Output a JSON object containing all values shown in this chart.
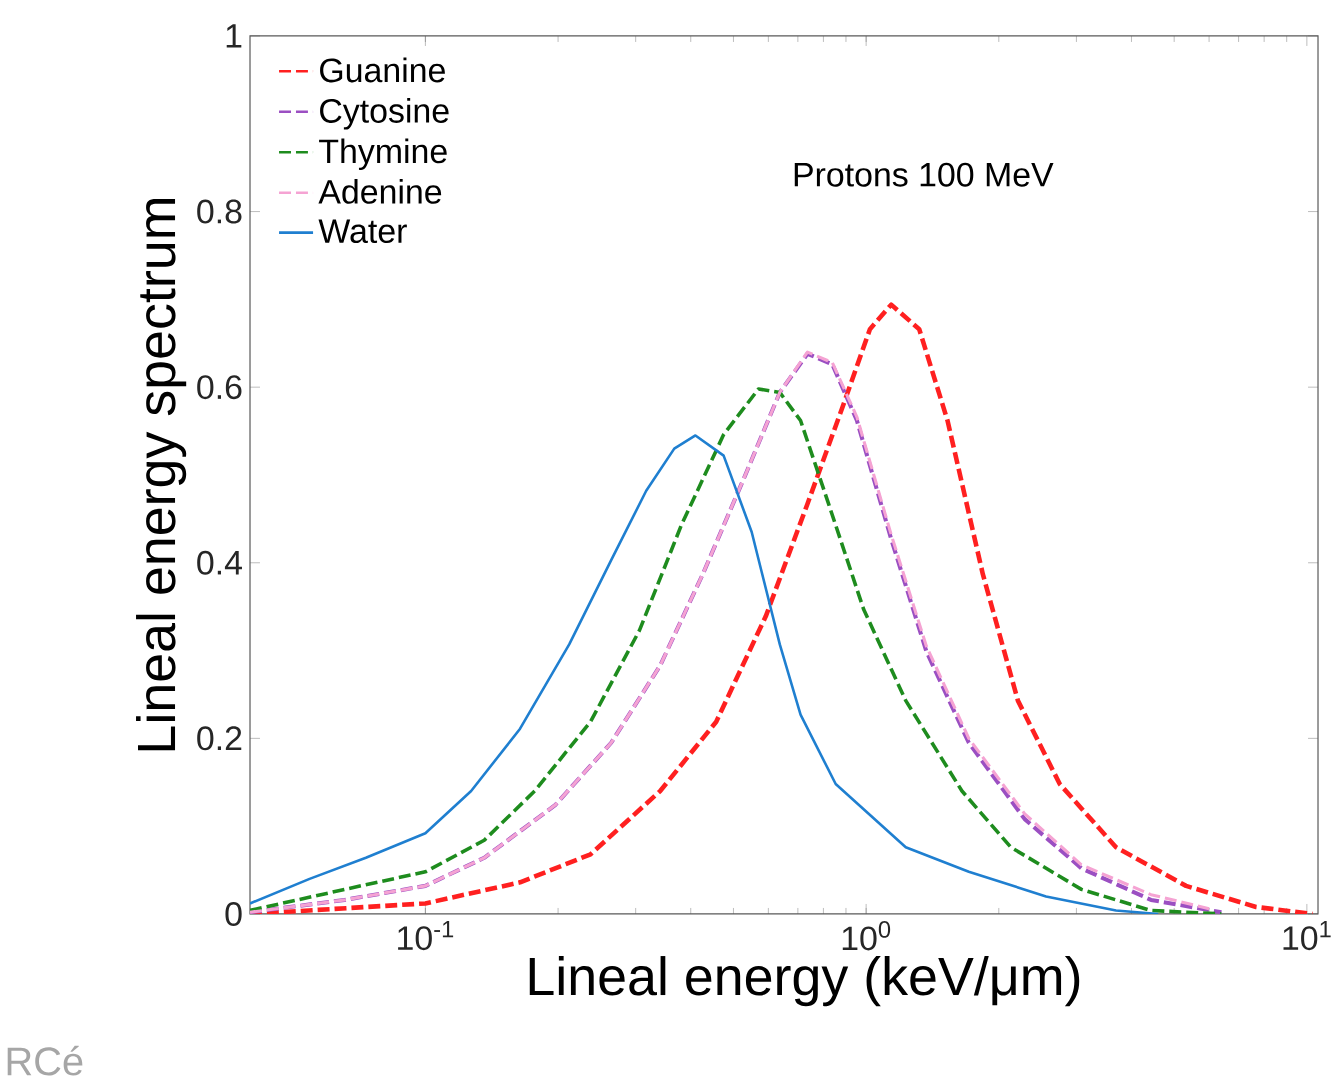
{
  "chart_data": {
    "type": "line",
    "xlabel": "Lineal energy (keV/μm)",
    "ylabel": "Lineal energy spectrum",
    "annotations": [
      "Protons 100 MeV",
      "RCé"
    ],
    "log": "x",
    "xlim": [
      0.04,
      10.6
    ],
    "ylim": [
      0,
      1
    ],
    "xticks": [
      {
        "value": 0.1,
        "label": "10$^{-1}$"
      },
      {
        "value": 1,
        "label": "10$^{0}$"
      },
      {
        "value": 10,
        "label": "10$^{1}$"
      }
    ],
    "yticks": [
      0,
      0.2,
      0.4,
      0.6,
      0.8,
      1
    ],
    "grid": false,
    "legend": "top left",
    "marker": "none",
    "series": [
      {
        "name": "Guanine",
        "color": "#ff2020",
        "line_style": "dashed",
        "x": [
          0.04,
          0.1,
          0.164,
          0.237,
          0.341,
          0.457,
          0.592,
          0.736,
          0.885,
          1.02,
          1.14,
          1.32,
          1.53,
          1.84,
          2.21,
          2.75,
          3.69,
          5.32,
          7.67,
          10.3
        ],
        "values": [
          0,
          0.012,
          0.036,
          0.068,
          0.14,
          0.219,
          0.339,
          0.467,
          0.578,
          0.666,
          0.694,
          0.666,
          0.562,
          0.387,
          0.243,
          0.148,
          0.076,
          0.032,
          0.008,
          0
        ]
      },
      {
        "name": "Cytosine",
        "color": "#9b4fc2",
        "line_style": "dashed",
        "x": [
          0.04,
          0.0656,
          0.1,
          0.136,
          0.197,
          0.264,
          0.341,
          0.426,
          0.53,
          0.637,
          0.736,
          0.838,
          0.953,
          1.14,
          1.37,
          1.71,
          2.29,
          3.08,
          4.43,
          6.4
        ],
        "values": [
          0.002,
          0.016,
          0.032,
          0.064,
          0.124,
          0.195,
          0.283,
          0.387,
          0.498,
          0.594,
          0.638,
          0.626,
          0.562,
          0.427,
          0.299,
          0.195,
          0.108,
          0.052,
          0.016,
          0.002
        ]
      },
      {
        "name": "Thymine",
        "color": "#1e8c1e",
        "line_style": "dashed",
        "x": [
          0.04,
          0.0656,
          0.1,
          0.136,
          0.177,
          0.237,
          0.306,
          0.381,
          0.475,
          0.57,
          0.637,
          0.71,
          0.822,
          0.987,
          1.23,
          1.65,
          2.13,
          3.08,
          4.43,
          6.4
        ],
        "values": [
          0.004,
          0.028,
          0.048,
          0.084,
          0.14,
          0.219,
          0.323,
          0.443,
          0.546,
          0.598,
          0.594,
          0.562,
          0.467,
          0.347,
          0.243,
          0.14,
          0.076,
          0.028,
          0.004,
          0
        ]
      },
      {
        "name": "Adenine",
        "color": "#f5a3d3",
        "line_style": "dashed",
        "x": [
          0.04,
          0.0656,
          0.1,
          0.136,
          0.197,
          0.264,
          0.341,
          0.426,
          0.53,
          0.637,
          0.736,
          0.838,
          0.953,
          1.14,
          1.37,
          1.71,
          2.29,
          3.08,
          4.43,
          6.0
        ],
        "values": [
          0.002,
          0.016,
          0.032,
          0.064,
          0.124,
          0.195,
          0.283,
          0.387,
          0.498,
          0.594,
          0.64,
          0.628,
          0.566,
          0.432,
          0.305,
          0.2,
          0.114,
          0.056,
          0.022,
          0.006
        ]
      },
      {
        "name": "Water",
        "color": "#1f7fd0",
        "line_style": "solid",
        "x": [
          0.04,
          0.0546,
          0.0733,
          0.1,
          0.127,
          0.164,
          0.212,
          0.264,
          0.317,
          0.367,
          0.41,
          0.475,
          0.55,
          0.637,
          0.71,
          0.853,
          1.23,
          1.71,
          2.56,
          3.69,
          4.6
        ],
        "values": [
          0.012,
          0.04,
          0.064,
          0.092,
          0.14,
          0.211,
          0.307,
          0.403,
          0.482,
          0.53,
          0.545,
          0.522,
          0.435,
          0.307,
          0.227,
          0.148,
          0.076,
          0.048,
          0.02,
          0.004,
          0
        ]
      }
    ]
  }
}
